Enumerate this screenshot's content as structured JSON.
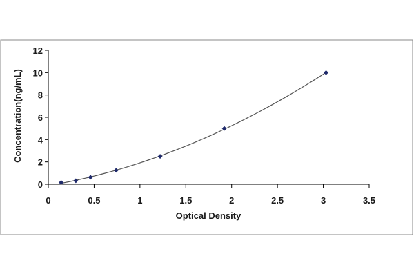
{
  "chart_data": {
    "type": "scatter",
    "title": "",
    "xlabel": "Optical Density",
    "ylabel": "Concentration(ng/mL)",
    "xlim": [
      0,
      3.5
    ],
    "ylim": [
      0,
      12
    ],
    "x_ticks": [
      "0",
      "0.5",
      "1",
      "1.5",
      "2",
      "2.5",
      "3",
      "3.5"
    ],
    "y_ticks": [
      "0",
      "2",
      "4",
      "6",
      "8",
      "10",
      "12"
    ],
    "grid": false,
    "legend": "none",
    "series": [
      {
        "points": [
          {
            "x": 0.14,
            "y": 0.156
          },
          {
            "x": 0.3,
            "y": 0.312
          },
          {
            "x": 0.46,
            "y": 0.625
          },
          {
            "x": 0.74,
            "y": 1.25
          },
          {
            "x": 1.22,
            "y": 2.5
          },
          {
            "x": 1.92,
            "y": 5.0
          },
          {
            "x": 3.03,
            "y": 10.0
          }
        ],
        "color": "#1f2a6b",
        "trendline": "polynomial"
      }
    ],
    "line_color": "#555555",
    "axis_color": "#000000"
  }
}
